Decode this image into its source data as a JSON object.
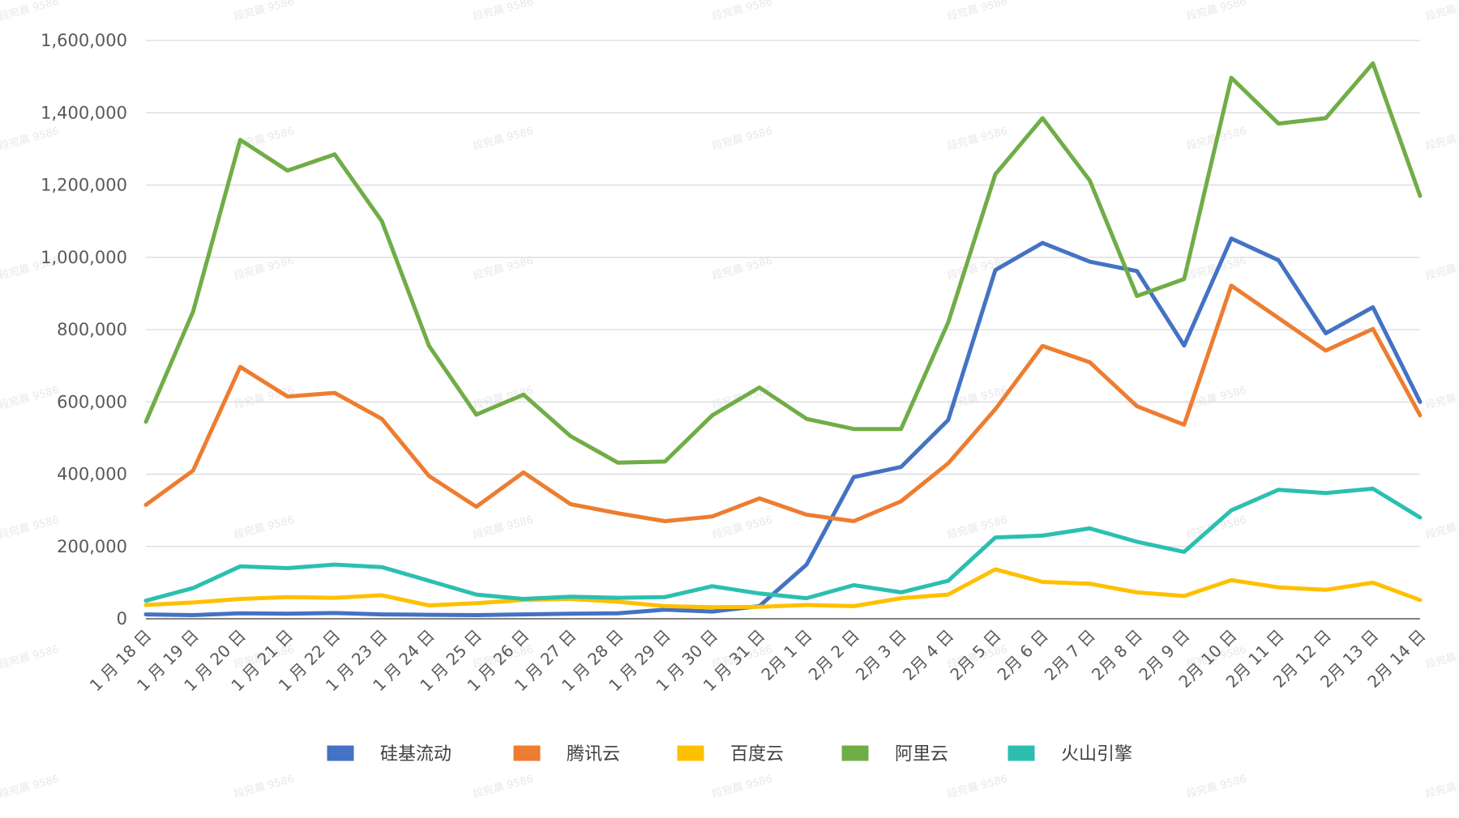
{
  "watermark": "段宛晨 9586",
  "chart_data": {
    "type": "line",
    "title": "",
    "xlabel": "",
    "ylabel": "",
    "ylim": [
      0,
      1600000
    ],
    "yticks": [
      0,
      200000,
      400000,
      600000,
      800000,
      1000000,
      1200000,
      1400000,
      1600000
    ],
    "ytick_labels": [
      "0",
      "200,000",
      "400,000",
      "600,000",
      "800,000",
      "1,000,000",
      "1,200,000",
      "1,400,000",
      "1,600,000"
    ],
    "grid": "horizontal",
    "legend_position": "bottom",
    "categories": [
      "1 月 18 日",
      "1 月 19 日",
      "1 月 20 日",
      "1 月 21 日",
      "1 月 22 日",
      "1 月 23 日",
      "1 月 24 日",
      "1 月 25 日",
      "1 月 26 日",
      "1 月 27 日",
      "1 月 28 日",
      "1 月 29 日",
      "1 月 30 日",
      "1 月 31 日",
      "2月 1 日",
      "2月 2 日",
      "2月 3 日",
      "2月 4 日",
      "2月 5 日",
      "2月 6 日",
      "2月 7 日",
      "2月 8 日",
      "2月 9 日",
      "2月 10 日",
      "2月 11 日",
      "2月 12 日",
      "2月 13 日",
      "2月 14 日"
    ],
    "series": [
      {
        "name": "硅基流动",
        "color": "#4472c4",
        "values": [
          12000,
          10000,
          15000,
          14000,
          16000,
          12000,
          11000,
          10000,
          12000,
          14000,
          15000,
          25000,
          20000,
          35000,
          150000,
          392000,
          420000,
          550000,
          965000,
          1040000,
          988000,
          962000,
          756000,
          1052000,
          992000,
          790000,
          862000,
          600000
        ]
      },
      {
        "name": "腾讯云",
        "color": "#ed7d31",
        "values": [
          315000,
          410000,
          697000,
          615000,
          625000,
          553000,
          395000,
          310000,
          405000,
          317000,
          292000,
          270000,
          283000,
          333000,
          288000,
          270000,
          325000,
          430000,
          580000,
          755000,
          710000,
          588000,
          537000,
          922000,
          832000,
          742000,
          802000,
          563000
        ]
      },
      {
        "name": "百度云",
        "color": "#ffc000",
        "values": [
          38000,
          45000,
          55000,
          60000,
          58000,
          65000,
          37000,
          43000,
          52000,
          55000,
          47000,
          35000,
          32000,
          33000,
          38000,
          35000,
          57000,
          67000,
          137000,
          102000,
          97000,
          73000,
          63000,
          107000,
          87000,
          80000,
          100000,
          52000
        ]
      },
      {
        "name": "阿里云",
        "color": "#70ad47",
        "values": [
          545000,
          850000,
          1325000,
          1240000,
          1285000,
          1100000,
          755000,
          565000,
          620000,
          505000,
          432000,
          435000,
          563000,
          640000,
          553000,
          525000,
          525000,
          820000,
          1230000,
          1385000,
          1213000,
          893000,
          940000,
          1497000,
          1370000,
          1385000,
          1537000,
          1170000
        ]
      },
      {
        "name": "火山引擎",
        "color": "#2cbfb0",
        "values": [
          50000,
          85000,
          145000,
          140000,
          150000,
          143000,
          105000,
          67000,
          55000,
          61000,
          58000,
          60000,
          90000,
          70000,
          57000,
          93000,
          73000,
          105000,
          225000,
          230000,
          250000,
          213000,
          185000,
          300000,
          357000,
          348000,
          360000,
          280000
        ]
      }
    ]
  }
}
